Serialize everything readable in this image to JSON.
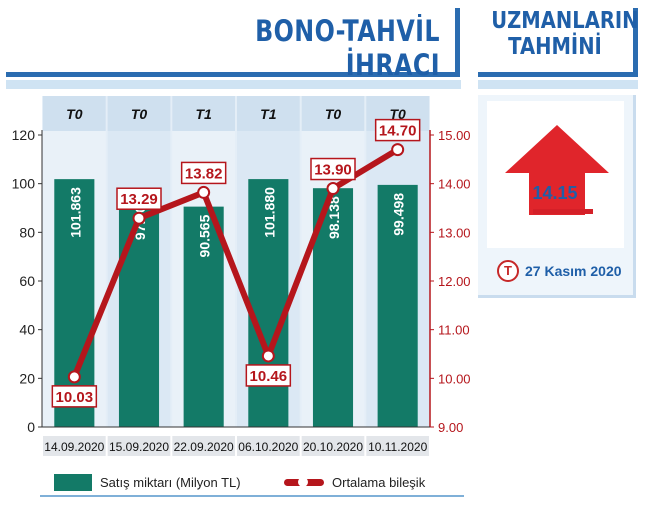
{
  "header": {
    "title": "BONO-TAHVİL İHRACI",
    "side_title_line1": "UZMANLARIN",
    "side_title_line2": "TAHMİNİ"
  },
  "prediction": {
    "value": "14.15",
    "date": "27 Kasım 2020",
    "icon_letter": "T",
    "arrow_color": "#e0252b"
  },
  "legend": {
    "sales_label": "Satış miktarı (Milyon TL)",
    "rate_label": "Ortalama bileşik"
  },
  "colors": {
    "bar": "#137a67",
    "line": "#b5161c",
    "brand_blue": "#1f5fa8",
    "light_blue": "#cfe3f3"
  },
  "chart_data": {
    "type": "bar",
    "categories": [
      "14.09.2020",
      "15.09.2020",
      "22.09.2020",
      "06.10.2020",
      "20.10.2020",
      "10.11.2020"
    ],
    "column_headers": [
      "T0",
      "T0",
      "T1",
      "T1",
      "T0",
      "T0"
    ],
    "series": [
      {
        "name": "Satış miktarı (Milyon TL)",
        "type": "bar",
        "axis": "left",
        "values": [
          101.863,
          97.707,
          90.565,
          101.88,
          98.138,
          99.498
        ],
        "labels": [
          "101.863",
          "97.707",
          "90.565",
          "101.880",
          "98.138",
          "99.498"
        ]
      },
      {
        "name": "Ortalama bileşik",
        "type": "line",
        "axis": "right",
        "values": [
          10.03,
          13.29,
          13.82,
          10.46,
          13.9,
          14.7
        ],
        "labels": [
          "10.03",
          "13.29",
          "13.82",
          "10.46",
          "13.90",
          "14.70"
        ]
      }
    ],
    "ylim_left": [
      0,
      120
    ],
    "yticks_left": [
      "0",
      "20",
      "40",
      "60",
      "80",
      "100",
      "120"
    ],
    "ylim_right": [
      9,
      15
    ],
    "yticks_right": [
      "9.00",
      "10.00",
      "11.00",
      "12.00",
      "13.00",
      "14.00",
      "15.00"
    ],
    "grid": false,
    "legend_position": "bottom"
  }
}
